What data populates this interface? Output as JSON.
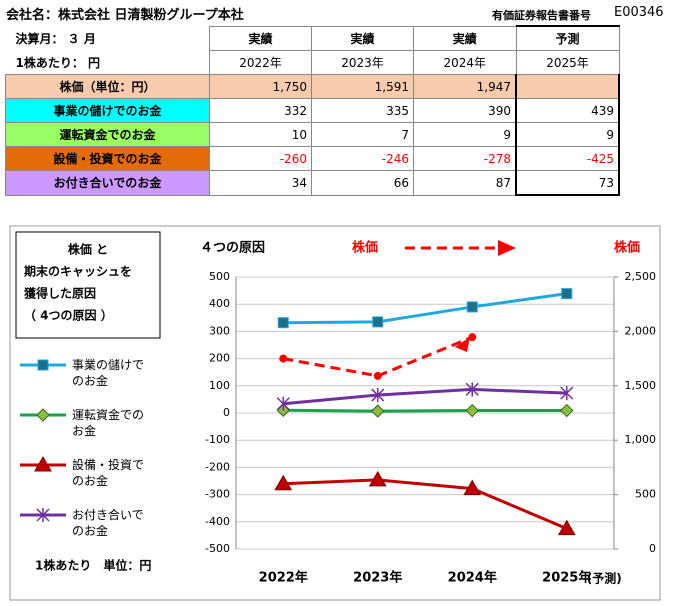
{
  "header": {
    "company": "会社名：株式会社 日清製粉グループ本社",
    "report_label": "有価証券報告書番号",
    "report_no": "E00346"
  },
  "table": {
    "corner": [
      "決算月： ３ 月",
      "1株あたり： 円"
    ],
    "columns": [
      {
        "kind": "実績",
        "year": "2022年"
      },
      {
        "kind": "実績",
        "year": "2023年"
      },
      {
        "kind": "実績",
        "year": "2024年"
      },
      {
        "kind": "予測",
        "year": "2025年"
      }
    ],
    "rows": [
      {
        "label": "株価（単位：円）",
        "color": "#f8cbad",
        "values": [
          "1,750",
          "1,591",
          "1,947"
        ]
      },
      {
        "label": "事業の儲けでのお金",
        "color": "#00ffff",
        "values": [
          "332",
          "335",
          "390",
          "439"
        ]
      },
      {
        "label": "運転資金でのお金",
        "color": "#99ff66",
        "values": [
          "10",
          "7",
          "9",
          "9"
        ]
      },
      {
        "label": "設備・投資でのお金",
        "color": "#e26b0a",
        "values": [
          "-260",
          "-246",
          "-278",
          "-425"
        ]
      },
      {
        "label": "お付き合いでのお金",
        "color": "#cc99ff",
        "values": [
          "34",
          "66",
          "87",
          "73"
        ]
      }
    ]
  },
  "chart_data": {
    "type": "line",
    "panel_title": [
      "株価 と",
      "期末のキャッシュを",
      "獲得した原因",
      "（ 4つの原因 ）"
    ],
    "unit_note": "1株あたり　単位：円",
    "title": "４つの原因",
    "stock_legend": "株価",
    "y2_label": "株価",
    "categories": [
      "2022年",
      "2023年",
      "2024年",
      "2025年"
    ],
    "forecast_note": "(予測)",
    "series": [
      {
        "name": "事業の儲けでのお金",
        "color": "#1ca9e1",
        "marker": "square",
        "values": [
          332,
          335,
          390,
          439
        ]
      },
      {
        "name": "運転資金でのお金",
        "color": "#1aa34a",
        "marker": "diamond",
        "values": [
          10,
          7,
          9,
          9
        ]
      },
      {
        "name": "設備・投資でのお金",
        "color": "#c00000",
        "marker": "triangle",
        "values": [
          -260,
          -246,
          -278,
          -425
        ]
      },
      {
        "name": "お付き合いでのお金",
        "color": "#7030a0",
        "marker": "star",
        "values": [
          34,
          66,
          87,
          73
        ]
      },
      {
        "name": "株価",
        "color": "#ff0000",
        "marker": "circle",
        "dashed": true,
        "axis": "y2",
        "values": [
          1750,
          1591,
          1947,
          null
        ]
      }
    ],
    "ylim": [
      -500,
      500
    ],
    "yticks": [
      -500,
      -400,
      -300,
      -200,
      -100,
      0,
      100,
      200,
      300,
      400,
      500
    ],
    "y2lim": [
      0,
      2500
    ],
    "y2ticks": [
      0,
      500,
      {
        "value": 1000,
        "label": "1,000"
      },
      {
        "value": 1500,
        "label": "1,500"
      },
      {
        "value": 2000,
        "label": "2,000"
      },
      {
        "value": 2500,
        "label": "2,500"
      }
    ],
    "grid": true
  }
}
